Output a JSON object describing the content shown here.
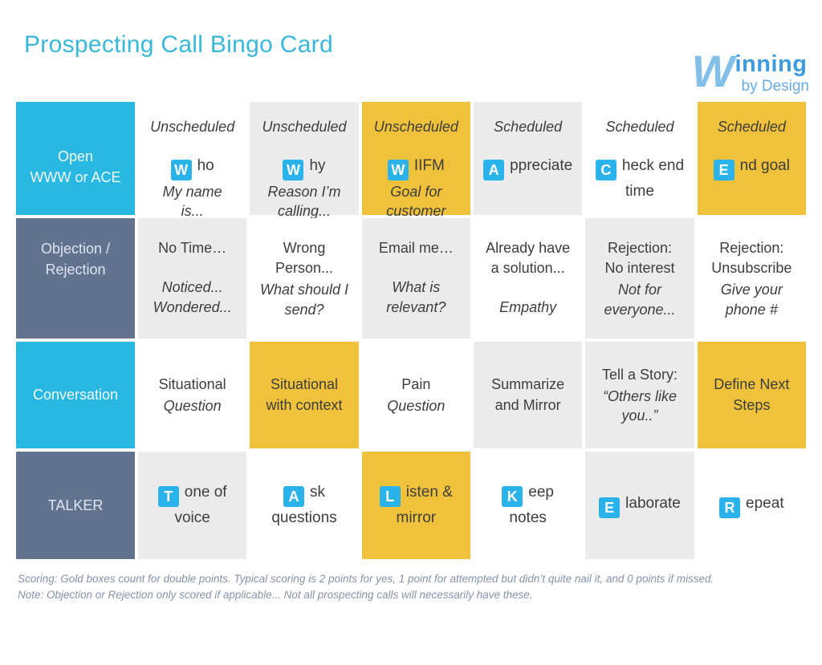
{
  "title": "Prospecting Call Bingo Card",
  "logo": {
    "w": "W",
    "name_rest": "inning",
    "tagline": "by Design"
  },
  "colors": {
    "accent_cyan": "#28b8e2",
    "accent_slate": "#627390",
    "accent_gold": "#f0c23c",
    "cell_gray": "#ebebeb",
    "badge_cyan": "#2ab3ea",
    "title_cyan": "#38b8d8",
    "logo_blue": "#3e9bdf",
    "logo_light_blue": "#82bfe9",
    "logo_tagline_blue": "#66abe2",
    "footer_gray_blue": "#8593a9"
  },
  "grid": {
    "rows": [
      {
        "label": "Open\nWWW or ACE",
        "variant": "cyan",
        "cells": [
          {
            "bg": "white",
            "header": "Unscheduled",
            "badge": "W",
            "text": "ho",
            "sub": "My name\nis..."
          },
          {
            "bg": "gray",
            "header": "Unscheduled",
            "badge": "W",
            "text": "hy",
            "sub": "Reason I’m\ncalling..."
          },
          {
            "bg": "gold",
            "header": "Unscheduled",
            "badge": "W",
            "text": "IIFM",
            "sub": "Goal for\ncustomer"
          },
          {
            "bg": "gray",
            "header": "Scheduled",
            "badge": "A",
            "text": "ppreciate"
          },
          {
            "bg": "white",
            "header": "Scheduled",
            "badge": "C",
            "text": "heck end\ntime"
          },
          {
            "bg": "gold",
            "header": "Scheduled",
            "badge": "E",
            "text": "nd goal"
          }
        ]
      },
      {
        "label": "Objection /\nRejection",
        "variant": "slate",
        "cells": [
          {
            "bg": "gray",
            "title": "No Time…",
            "sub": "Noticed...\nWondered..."
          },
          {
            "bg": "white",
            "title": "Wrong\nPerson...",
            "sub": "What should I\nsend?"
          },
          {
            "bg": "gray",
            "title": "Email me…",
            "sub": "What is\nrelevant?"
          },
          {
            "bg": "white",
            "title": "Already have\na solution...",
            "sub": "Empathy"
          },
          {
            "bg": "gray",
            "title": "Rejection:\nNo interest",
            "sub": "Not for\neveryone..."
          },
          {
            "bg": "white",
            "title": "Rejection:\nUnsubscribe",
            "sub": "Give your\nphone #"
          }
        ]
      },
      {
        "label": "Conversation",
        "variant": "cyan",
        "cells": [
          {
            "bg": "white",
            "title": "Situational",
            "sub": "Question"
          },
          {
            "bg": "gold",
            "title": "Situational\nwith context"
          },
          {
            "bg": "white",
            "title": "Pain",
            "sub": "Question"
          },
          {
            "bg": "gray",
            "title": "Summarize\nand Mirror"
          },
          {
            "bg": "gray",
            "title": "Tell a Story:",
            "sub": "“Others like\nyou..”"
          },
          {
            "bg": "gold",
            "title": "Define Next\nSteps"
          }
        ]
      },
      {
        "label": "TALKER",
        "variant": "slate",
        "cells": [
          {
            "bg": "gray",
            "badge": "T",
            "text": "one of\nvoice"
          },
          {
            "bg": "white",
            "badge": "A",
            "text": "sk\nquestions"
          },
          {
            "bg": "gold",
            "badge": "L",
            "text": "isten &\nmirror"
          },
          {
            "bg": "white",
            "badge": "K",
            "text": "eep\nnotes"
          },
          {
            "bg": "gray",
            "badge": "E",
            "text": "laborate"
          },
          {
            "bg": "white",
            "badge": "R",
            "text": "epeat"
          }
        ]
      }
    ]
  },
  "footer": {
    "scoring": "Scoring: Gold boxes count for double points. Typical scoring is 2 points for yes, 1 point for attempted but didn’t quite nail it, and 0 points if missed.",
    "note": "Note: Objection or Rejection only scored if applicable... Not all prospecting calls will necessarily have these."
  }
}
